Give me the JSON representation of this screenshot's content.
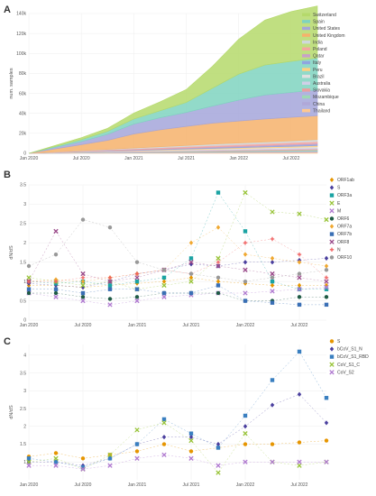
{
  "panels": {
    "a": "A",
    "b": "B",
    "c": "C"
  },
  "chart_data": [
    {
      "type": "area",
      "stacked": true,
      "ylabel": "num. samples",
      "x": [
        "2020-01",
        "2020-04",
        "2020-07",
        "2020-10",
        "2021-01",
        "2021-04",
        "2021-07",
        "2021-10",
        "2022-01",
        "2022-04",
        "2022-07",
        "2022-10"
      ],
      "x_ticks": [
        "Jan 2020",
        "Jul 2020",
        "Jan 2021",
        "Jul 2021",
        "Jan 2022",
        "Jul 2022"
      ],
      "ylim": [
        0,
        140000
      ],
      "y_ticks": [
        "0",
        "20k",
        "40k",
        "60k",
        "80k",
        "100k",
        "120k",
        "140k"
      ],
      "grid": true,
      "legend_position": "top-right",
      "series": [
        {
          "name": "Switzerland",
          "color": "#b5d96b",
          "values": [
            0,
            1000,
            2000,
            3000,
            6000,
            9000,
            13000,
            22000,
            35000,
            45000,
            50000,
            52000
          ]
        },
        {
          "name": "Spain",
          "color": "#7fd3c0",
          "values": [
            0,
            1000,
            2000,
            3000,
            5000,
            7000,
            10000,
            18000,
            26000,
            30000,
            31000,
            32000
          ]
        },
        {
          "name": "United States",
          "color": "#a5a6da",
          "values": [
            0,
            1500,
            3000,
            6000,
            10000,
            12000,
            14000,
            17000,
            21000,
            24000,
            25000,
            26000
          ]
        },
        {
          "name": "United Kingdom",
          "color": "#f6b26b",
          "values": [
            0,
            3000,
            6000,
            9000,
            14000,
            17000,
            19000,
            21000,
            22000,
            23000,
            23500,
            24000
          ]
        },
        {
          "name": "India",
          "color": "#cfd8dc",
          "values": [
            0,
            200,
            400,
            600,
            800,
            1000,
            1200,
            1400,
            1500,
            1600,
            1700,
            1800
          ]
        },
        {
          "name": "Poland",
          "color": "#f4a7a0",
          "values": [
            0,
            200,
            400,
            600,
            800,
            1000,
            1200,
            1400,
            1500,
            1600,
            1700,
            1800
          ]
        },
        {
          "name": "Qatar",
          "color": "#c8a2c8",
          "values": [
            0,
            100,
            200,
            300,
            400,
            500,
            600,
            700,
            800,
            900,
            1000,
            1100
          ]
        },
        {
          "name": "Italy",
          "color": "#90a4e0",
          "values": [
            0,
            200,
            300,
            400,
            500,
            600,
            700,
            800,
            900,
            1000,
            1100,
            1200
          ]
        },
        {
          "name": "Peru",
          "color": "#ffd080",
          "values": [
            0,
            100,
            200,
            300,
            400,
            500,
            600,
            700,
            800,
            900,
            1000,
            1100
          ]
        },
        {
          "name": "Brazil",
          "color": "#e0e0e0",
          "values": [
            0,
            100,
            200,
            300,
            400,
            500,
            600,
            700,
            800,
            900,
            1000,
            1100
          ]
        },
        {
          "name": "Australia",
          "color": "#d0d0e8",
          "values": [
            0,
            100,
            200,
            300,
            400,
            500,
            600,
            700,
            800,
            900,
            1000,
            1100
          ]
        },
        {
          "name": "Slovakia",
          "color": "#e8a0a0",
          "values": [
            0,
            100,
            200,
            300,
            400,
            500,
            600,
            700,
            800,
            900,
            1000,
            1100
          ]
        },
        {
          "name": "Mozambique",
          "color": "#9ed9b5",
          "values": [
            0,
            100,
            200,
            300,
            400,
            500,
            600,
            700,
            800,
            900,
            1000,
            1100
          ]
        },
        {
          "name": "China",
          "color": "#b0a8d8",
          "values": [
            0,
            100,
            200,
            300,
            400,
            500,
            600,
            700,
            800,
            900,
            1000,
            1100
          ]
        },
        {
          "name": "Thailand",
          "color": "#ffc890",
          "values": [
            0,
            100,
            200,
            300,
            400,
            500,
            600,
            700,
            800,
            900,
            1000,
            1100
          ]
        }
      ]
    },
    {
      "type": "scatter",
      "ylabel": "dN/dS",
      "x": [
        "2020-01",
        "2020-04",
        "2020-07",
        "2020-10",
        "2021-01",
        "2021-04",
        "2021-07",
        "2021-10",
        "2022-01",
        "2022-04",
        "2022-07",
        "2022-10"
      ],
      "x_ticks": [
        "Jan 2020",
        "Jul 2020",
        "Jan 2021",
        "Jul 2021",
        "Jan 2022",
        "Jul 2022"
      ],
      "ylim": [
        0,
        3.5
      ],
      "y_ticks": [
        "0",
        "0.5",
        "1",
        "1.5",
        "2",
        "2.5",
        "3",
        "3.5"
      ],
      "grid": true,
      "legend_position": "right",
      "series": [
        {
          "name": "ORF1ab",
          "color": "#e69500",
          "marker": "diamond",
          "values": [
            0.9,
            0.9,
            0.85,
            0.9,
            0.95,
            1.0,
            1.1,
            1.0,
            0.95,
            0.9,
            0.9,
            0.9
          ]
        },
        {
          "name": "S",
          "color": "#4a3f9e",
          "marker": "diamond",
          "values": [
            0.95,
            0.9,
            0.85,
            1.0,
            1.2,
            1.3,
            1.45,
            1.4,
            1.5,
            1.5,
            1.55,
            1.6
          ]
        },
        {
          "name": "ORF3a",
          "color": "#1aa3a3",
          "marker": "square",
          "values": [
            1.0,
            0.95,
            1.0,
            0.9,
            1.0,
            1.1,
            1.6,
            3.3,
            2.3,
            1.0,
            0.8,
            0.8
          ]
        },
        {
          "name": "E",
          "color": "#99c43a",
          "marker": "x",
          "values": [
            1.1,
            1.0,
            0.9,
            1.0,
            0.8,
            0.9,
            1.0,
            1.6,
            3.3,
            2.8,
            2.75,
            2.6
          ]
        },
        {
          "name": "M",
          "color": "#b07ad0",
          "marker": "x",
          "values": [
            0.7,
            0.6,
            0.5,
            0.4,
            0.5,
            0.6,
            0.65,
            0.7,
            0.7,
            0.75,
            0.8,
            0.85
          ]
        },
        {
          "name": "ORF6",
          "color": "#1f5b45",
          "marker": "circle",
          "values": [
            0.7,
            0.7,
            0.6,
            0.55,
            0.6,
            0.7,
            0.7,
            0.7,
            0.5,
            0.5,
            0.6,
            0.6
          ]
        },
        {
          "name": "ORF7a",
          "color": "#f0a830",
          "marker": "diamond",
          "values": [
            1.0,
            1.05,
            1.0,
            1.1,
            1.2,
            1.3,
            2.0,
            2.4,
            1.7,
            1.6,
            1.5,
            1.4
          ]
        },
        {
          "name": "ORF7b",
          "color": "#3a6fb5",
          "marker": "square",
          "values": [
            0.8,
            0.8,
            0.7,
            0.8,
            0.8,
            0.7,
            0.7,
            0.9,
            0.5,
            0.45,
            0.4,
            0.4
          ]
        },
        {
          "name": "ORF8",
          "color": "#9a4a8a",
          "marker": "x",
          "values": [
            1.0,
            2.3,
            1.2,
            1.0,
            1.1,
            1.3,
            1.5,
            1.4,
            1.3,
            1.2,
            1.1,
            1.0
          ]
        },
        {
          "name": "N",
          "color": "#f06060",
          "marker": "plus",
          "values": [
            1.0,
            1.0,
            1.1,
            1.1,
            1.2,
            1.3,
            1.2,
            1.5,
            2.0,
            2.1,
            1.7,
            1.1
          ]
        },
        {
          "name": "ORF10",
          "color": "#999999",
          "marker": "circle",
          "values": [
            1.4,
            1.7,
            2.6,
            2.4,
            1.5,
            1.3,
            1.2,
            1.1,
            1.0,
            1.1,
            1.2,
            1.3
          ]
        }
      ]
    },
    {
      "type": "scatter",
      "ylabel": "dN/dS",
      "x": [
        "2020-01",
        "2020-04",
        "2020-07",
        "2020-10",
        "2021-01",
        "2021-04",
        "2021-07",
        "2021-10",
        "2022-01",
        "2022-04",
        "2022-07",
        "2022-10"
      ],
      "x_ticks": [
        "Jan 2020",
        "Jul 2020",
        "Jan 2021",
        "Jul 2021",
        "Jan 2022",
        "Jul 2022"
      ],
      "ylim": [
        0.5,
        4.3
      ],
      "y_ticks": [
        "1",
        "1.5",
        "2",
        "2.5",
        "3",
        "3.5",
        "4"
      ],
      "grid": true,
      "legend_position": "top-right",
      "series": [
        {
          "name": "S",
          "color": "#e69500",
          "marker": "circle",
          "values": [
            1.15,
            1.25,
            1.1,
            1.2,
            1.3,
            1.5,
            1.3,
            1.4,
            1.5,
            1.5,
            1.55,
            1.6
          ]
        },
        {
          "name": "bCoV_S1_N",
          "color": "#4a3f9e",
          "marker": "diamond",
          "values": [
            1.0,
            1.0,
            0.9,
            1.1,
            1.5,
            1.7,
            1.7,
            1.5,
            2.0,
            2.6,
            2.9,
            2.1
          ]
        },
        {
          "name": "bCoV_S1_RBD",
          "color": "#3a7fc0",
          "marker": "square",
          "values": [
            1.1,
            1.0,
            0.85,
            1.1,
            1.5,
            2.2,
            1.8,
            1.4,
            2.3,
            3.3,
            4.1,
            2.8
          ]
        },
        {
          "name": "CoV_S1_C",
          "color": "#99c43a",
          "marker": "x",
          "values": [
            1.0,
            1.1,
            0.8,
            1.2,
            1.9,
            2.1,
            1.6,
            0.7,
            1.8,
            1.0,
            0.9,
            1.0
          ]
        },
        {
          "name": "CoV_S2",
          "color": "#b07ad0",
          "marker": "x",
          "values": [
            0.9,
            0.9,
            0.8,
            0.9,
            1.1,
            1.2,
            1.1,
            0.9,
            1.0,
            1.0,
            1.0,
            1.0
          ]
        }
      ]
    }
  ]
}
